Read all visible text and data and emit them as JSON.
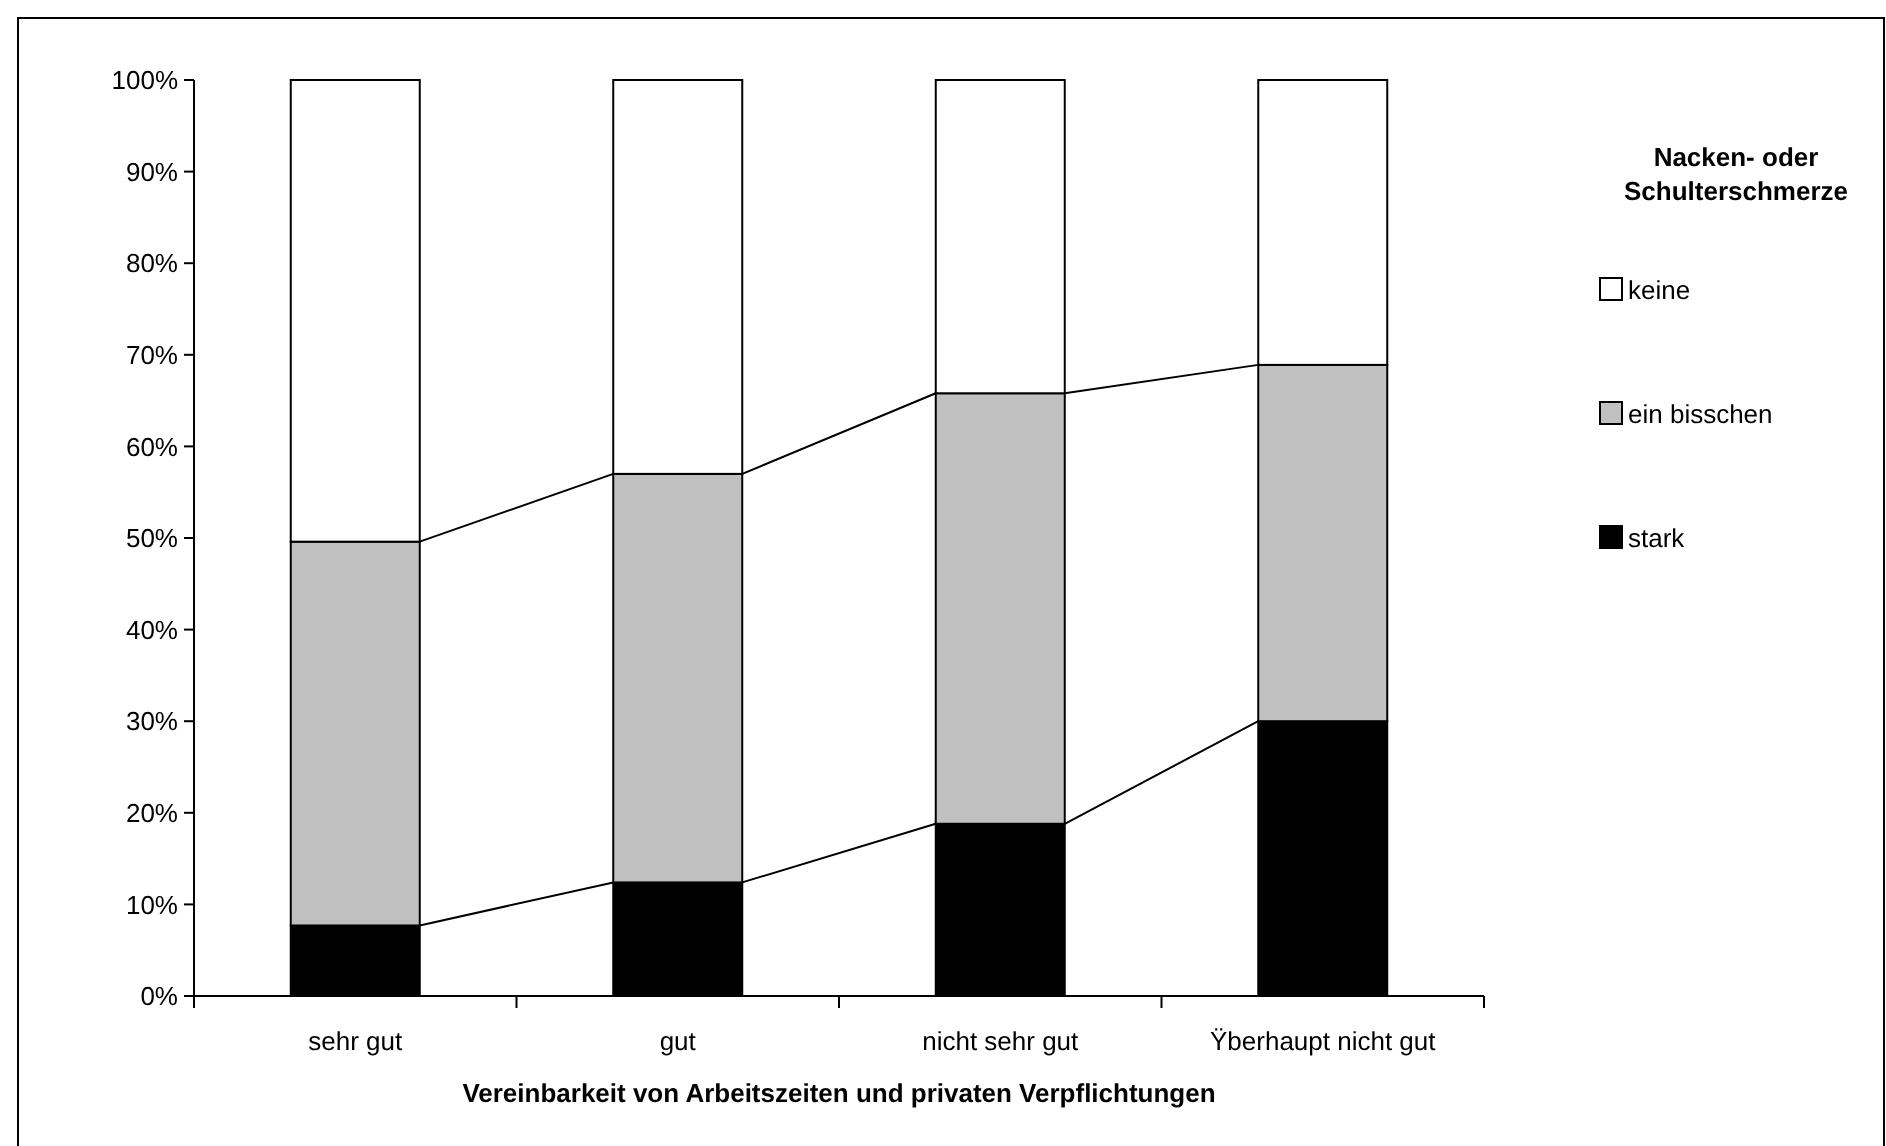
{
  "chart_data": {
    "type": "bar",
    "stacked": true,
    "xlabel": "Vereinbarkeit von Arbeitszeiten und privaten Verpflichtungen",
    "legend_title": "Nacken- oder Schulterschmerze",
    "categories": [
      "sehr gut",
      "gut",
      "nicht sehr gut",
      "Ÿberhaupt nicht gut"
    ],
    "series": [
      {
        "name": "stark",
        "color": "#000000",
        "values": [
          7.7,
          12.4,
          18.8,
          30.0
        ]
      },
      {
        "name": "ein bisschen",
        "color": "#c0c0c0",
        "values": [
          41.9,
          44.6,
          47.0,
          38.9
        ]
      },
      {
        "name": "keine",
        "color": "#ffffff",
        "values": [
          50.4,
          43.0,
          34.2,
          31.1
        ]
      }
    ],
    "ylim": [
      0,
      100
    ],
    "yticks": [
      {
        "value": 0,
        "label": "0%"
      },
      {
        "value": 10,
        "label": "10%"
      },
      {
        "value": 20,
        "label": "20%"
      },
      {
        "value": 30,
        "label": "30%"
      },
      {
        "value": 40,
        "label": "40%"
      },
      {
        "value": 50,
        "label": "50%"
      },
      {
        "value": 60,
        "label": "60%"
      },
      {
        "value": 70,
        "label": "70%"
      },
      {
        "value": 80,
        "label": "80%"
      },
      {
        "value": 90,
        "label": "90%"
      },
      {
        "value": 100,
        "label": "100%"
      }
    ],
    "grid": false,
    "legend": "right"
  }
}
